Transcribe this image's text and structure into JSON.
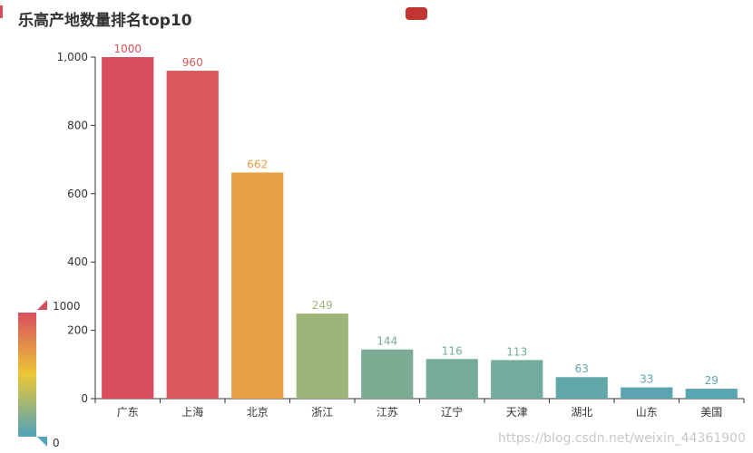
{
  "colors": {
    "high": "#d94e5d",
    "mid": "#eac736",
    "low": "#50a3ba",
    "legend": "#c23531",
    "axis": "#333333"
  },
  "visual_map": {
    "max_label": "1000",
    "min_label": "0",
    "max": 1000,
    "min": 0
  },
  "watermark": "https://blog.csdn.net/weixin_44361900",
  "chart_data": {
    "type": "bar",
    "title": "乐高产地数量排名top10",
    "categories": [
      "广东",
      "上海",
      "北京",
      "浙江",
      "江苏",
      "辽宁",
      "天津",
      "湖北",
      "山东",
      "美国"
    ],
    "values": [
      1000,
      960,
      662,
      249,
      144,
      116,
      113,
      63,
      33,
      29
    ],
    "ylim": [
      0,
      1000
    ],
    "yticks": [
      0,
      200,
      400,
      600,
      800,
      1000
    ],
    "ytick_labels": [
      "0",
      "200",
      "400",
      "600",
      "800",
      "1,000"
    ],
    "xlabel": "",
    "ylabel": "",
    "grid": false,
    "legend": "top-center"
  }
}
